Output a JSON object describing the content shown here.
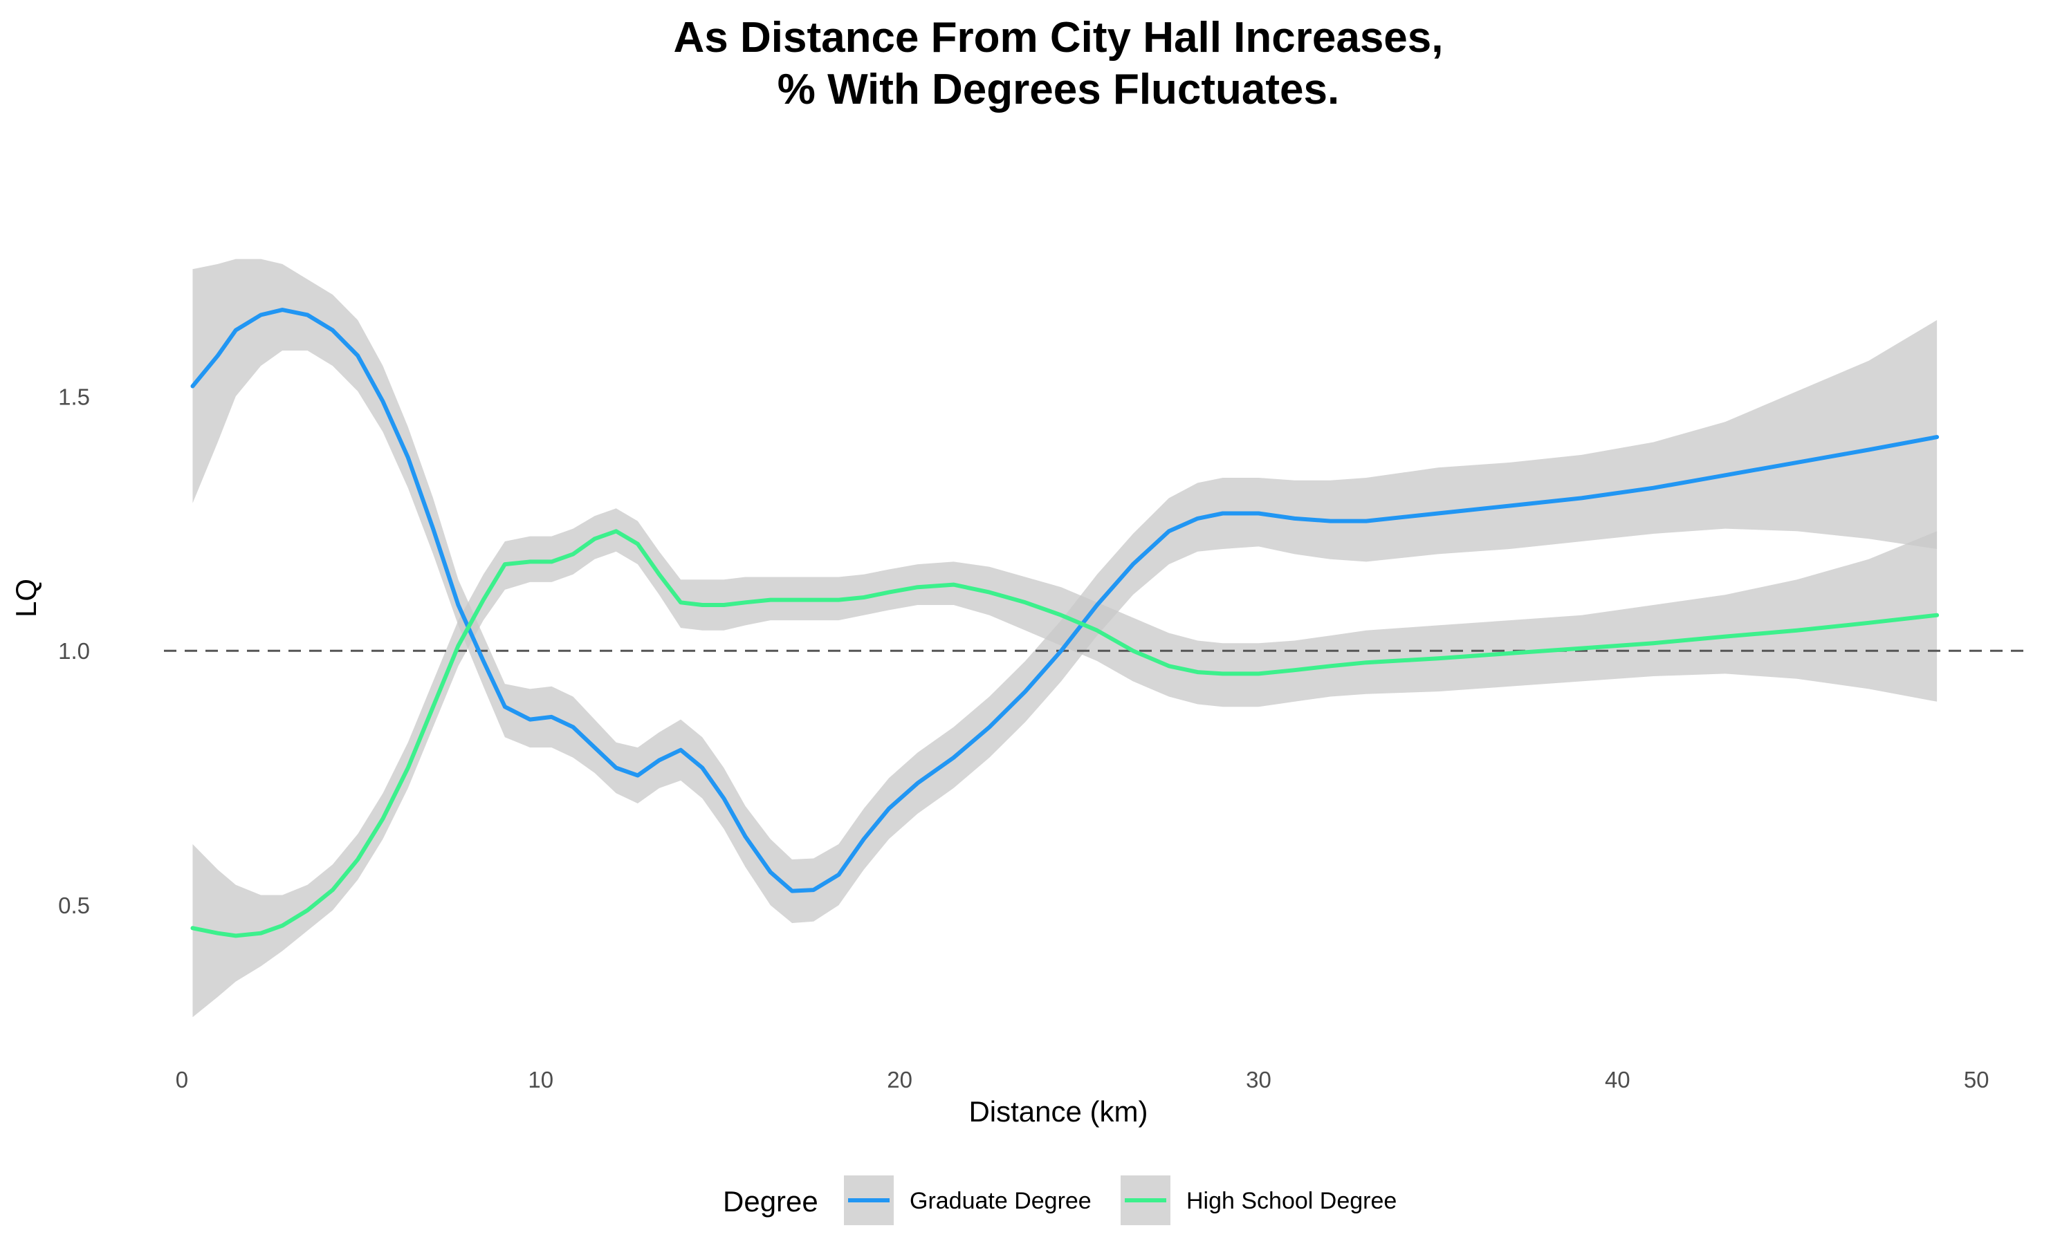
{
  "chart_data": {
    "type": "line",
    "title_lines": [
      "As Distance From City Hall Increases,",
      "% With Degrees Fluctuates."
    ],
    "xlabel": "Distance (km)",
    "ylabel": "LQ",
    "xlim": [
      -0.5,
      51.5
    ],
    "ylim": [
      0.2,
      1.98
    ],
    "x_ticks": [
      0,
      10,
      20,
      30,
      40,
      50
    ],
    "y_ticks": [
      0.5,
      1.0,
      1.5
    ],
    "y_tick_labels": [
      "0.5",
      "1.0",
      "1.5"
    ],
    "reference_line": {
      "y": 1.0,
      "style": "dashed"
    },
    "grid": false,
    "legend": {
      "title": "Degree",
      "position": "bottom"
    },
    "band_color": "#c8c8c8",
    "series": [
      {
        "name": "Graduate Degree",
        "color": "#2196f3",
        "x": [
          0.3,
          1.0,
          1.5,
          2.2,
          2.8,
          3.5,
          4.2,
          4.9,
          5.6,
          6.3,
          7.0,
          7.7,
          8.4,
          9.0,
          9.7,
          10.3,
          10.9,
          11.5,
          12.1,
          12.7,
          13.3,
          13.9,
          14.5,
          15.1,
          15.7,
          16.4,
          17.0,
          17.6,
          18.3,
          19.0,
          19.7,
          20.5,
          21.5,
          22.5,
          23.5,
          24.5,
          25.5,
          26.5,
          27.5,
          28.3,
          29.0,
          30.0,
          31.0,
          32.0,
          33.0,
          35.0,
          37.0,
          39.0,
          41.0,
          43.0,
          45.0,
          47.0,
          48.9
        ],
        "y": [
          1.52,
          1.58,
          1.63,
          1.66,
          1.67,
          1.66,
          1.63,
          1.58,
          1.49,
          1.38,
          1.24,
          1.09,
          0.98,
          0.89,
          0.865,
          0.87,
          0.85,
          0.81,
          0.77,
          0.755,
          0.785,
          0.805,
          0.77,
          0.71,
          0.635,
          0.565,
          0.528,
          0.53,
          0.56,
          0.63,
          0.69,
          0.74,
          0.79,
          0.85,
          0.92,
          1.0,
          1.09,
          1.17,
          1.235,
          1.26,
          1.27,
          1.27,
          1.26,
          1.255,
          1.255,
          1.27,
          1.285,
          1.3,
          1.32,
          1.345,
          1.37,
          1.395,
          1.42
        ],
        "lower": [
          1.29,
          1.41,
          1.5,
          1.56,
          1.59,
          1.59,
          1.56,
          1.51,
          1.43,
          1.32,
          1.19,
          1.05,
          0.93,
          0.83,
          0.81,
          0.81,
          0.79,
          0.76,
          0.72,
          0.7,
          0.73,
          0.745,
          0.71,
          0.65,
          0.575,
          0.5,
          0.465,
          0.468,
          0.5,
          0.57,
          0.63,
          0.68,
          0.73,
          0.79,
          0.86,
          0.94,
          1.03,
          1.11,
          1.17,
          1.195,
          1.2,
          1.205,
          1.19,
          1.18,
          1.175,
          1.19,
          1.2,
          1.215,
          1.23,
          1.24,
          1.235,
          1.22,
          1.2
        ],
        "upper": [
          1.75,
          1.76,
          1.77,
          1.77,
          1.76,
          1.73,
          1.7,
          1.65,
          1.56,
          1.44,
          1.3,
          1.14,
          1.03,
          0.935,
          0.925,
          0.93,
          0.91,
          0.865,
          0.82,
          0.81,
          0.84,
          0.865,
          0.83,
          0.77,
          0.695,
          0.63,
          0.59,
          0.592,
          0.62,
          0.69,
          0.75,
          0.8,
          0.85,
          0.91,
          0.98,
          1.06,
          1.15,
          1.23,
          1.3,
          1.33,
          1.34,
          1.34,
          1.335,
          1.335,
          1.34,
          1.36,
          1.37,
          1.385,
          1.41,
          1.45,
          1.51,
          1.57,
          1.65
        ]
      },
      {
        "name": "High School Degree",
        "color": "#3cf08c",
        "x": [
          0.3,
          1.0,
          1.5,
          2.2,
          2.8,
          3.5,
          4.2,
          4.9,
          5.6,
          6.3,
          7.0,
          7.7,
          8.4,
          9.0,
          9.7,
          10.3,
          10.9,
          11.5,
          12.1,
          12.7,
          13.3,
          13.9,
          14.5,
          15.1,
          15.7,
          16.4,
          17.0,
          17.6,
          18.3,
          19.0,
          19.7,
          20.5,
          21.5,
          22.5,
          23.5,
          24.5,
          25.5,
          26.5,
          27.5,
          28.3,
          29.0,
          30.0,
          31.0,
          32.0,
          33.0,
          35.0,
          37.0,
          39.0,
          41.0,
          43.0,
          45.0,
          47.0,
          48.9
        ],
        "y": [
          0.455,
          0.445,
          0.44,
          0.445,
          0.46,
          0.49,
          0.53,
          0.59,
          0.67,
          0.77,
          0.89,
          1.01,
          1.1,
          1.17,
          1.175,
          1.175,
          1.19,
          1.22,
          1.235,
          1.21,
          1.15,
          1.095,
          1.09,
          1.09,
          1.095,
          1.1,
          1.1,
          1.1,
          1.1,
          1.105,
          1.115,
          1.125,
          1.13,
          1.115,
          1.095,
          1.07,
          1.04,
          1.0,
          0.97,
          0.958,
          0.955,
          0.955,
          0.962,
          0.97,
          0.977,
          0.985,
          0.995,
          1.005,
          1.015,
          1.028,
          1.04,
          1.055,
          1.07
        ],
        "lower": [
          0.28,
          0.32,
          0.35,
          0.38,
          0.41,
          0.45,
          0.49,
          0.55,
          0.63,
          0.73,
          0.85,
          0.97,
          1.06,
          1.12,
          1.135,
          1.135,
          1.15,
          1.18,
          1.195,
          1.17,
          1.11,
          1.045,
          1.04,
          1.04,
          1.05,
          1.06,
          1.06,
          1.06,
          1.06,
          1.07,
          1.08,
          1.09,
          1.09,
          1.07,
          1.04,
          1.01,
          0.98,
          0.94,
          0.91,
          0.895,
          0.89,
          0.89,
          0.9,
          0.91,
          0.915,
          0.92,
          0.93,
          0.94,
          0.95,
          0.955,
          0.945,
          0.925,
          0.9
        ],
        "upper": [
          0.62,
          0.57,
          0.54,
          0.52,
          0.52,
          0.54,
          0.58,
          0.64,
          0.72,
          0.82,
          0.94,
          1.06,
          1.15,
          1.215,
          1.225,
          1.225,
          1.24,
          1.265,
          1.28,
          1.255,
          1.195,
          1.14,
          1.14,
          1.14,
          1.145,
          1.145,
          1.145,
          1.145,
          1.145,
          1.15,
          1.16,
          1.17,
          1.175,
          1.165,
          1.145,
          1.125,
          1.095,
          1.065,
          1.035,
          1.02,
          1.015,
          1.015,
          1.02,
          1.03,
          1.04,
          1.05,
          1.06,
          1.07,
          1.09,
          1.11,
          1.14,
          1.18,
          1.235
        ]
      }
    ]
  }
}
